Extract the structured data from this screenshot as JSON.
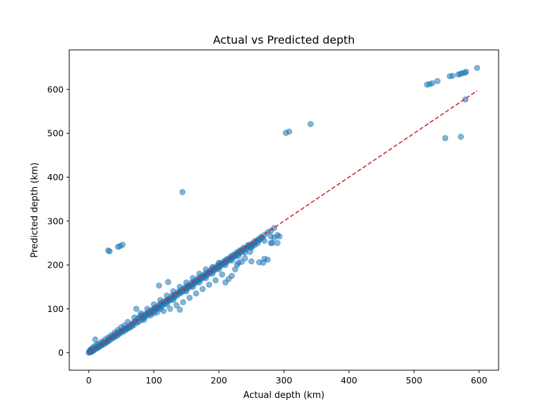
{
  "chart_data": {
    "type": "scatter",
    "title": "Actual vs Predicted depth",
    "xlabel": "Actual depth (km)",
    "ylabel": "Predicted depth (km)",
    "xlim": [
      -30,
      630
    ],
    "ylim": [
      -40,
      690
    ],
    "xticks": [
      0,
      100,
      200,
      300,
      400,
      500,
      600
    ],
    "yticks": [
      0,
      100,
      200,
      300,
      400,
      500,
      600
    ],
    "grid": false,
    "point_color": "#1f77b4",
    "point_alpha": 0.55,
    "reference_line": {
      "from": [
        0,
        0
      ],
      "to": [
        597,
        597
      ],
      "color": "#d62728",
      "style": "dashed"
    },
    "series": [
      {
        "values": [
          [
            0,
            0
          ],
          [
            1,
            2
          ],
          [
            2,
            1
          ],
          [
            3,
            4
          ],
          [
            5,
            3
          ],
          [
            6,
            8
          ],
          [
            8,
            6
          ],
          [
            10,
            10
          ],
          [
            12,
            11
          ],
          [
            15,
            14
          ],
          [
            18,
            19
          ],
          [
            20,
            18
          ],
          [
            22,
            23
          ],
          [
            25,
            24
          ],
          [
            10,
            30
          ],
          [
            28,
            27
          ],
          [
            30,
            31
          ],
          [
            33,
            32
          ],
          [
            35,
            36
          ],
          [
            38,
            37
          ],
          [
            40,
            41
          ],
          [
            42,
            40
          ],
          [
            45,
            46
          ],
          [
            48,
            47
          ],
          [
            50,
            50
          ],
          [
            52,
            51
          ],
          [
            55,
            55
          ],
          [
            58,
            56
          ],
          [
            60,
            58
          ],
          [
            62,
            60
          ],
          [
            65,
            64
          ],
          [
            68,
            67
          ],
          [
            70,
            70
          ],
          [
            72,
            72
          ],
          [
            73,
            100
          ],
          [
            75,
            78
          ],
          [
            78,
            80
          ],
          [
            80,
            85
          ],
          [
            82,
            82
          ],
          [
            85,
            86
          ],
          [
            88,
            89
          ],
          [
            90,
            88
          ],
          [
            92,
            93
          ],
          [
            95,
            96
          ],
          [
            98,
            97
          ],
          [
            100,
            100
          ],
          [
            102,
            103
          ],
          [
            105,
            104
          ],
          [
            108,
            109
          ],
          [
            110,
            108
          ],
          [
            112,
            113
          ],
          [
            115,
            116
          ],
          [
            118,
            117
          ],
          [
            120,
            120
          ],
          [
            122,
            121
          ],
          [
            125,
            124
          ],
          [
            128,
            130
          ],
          [
            130,
            128
          ],
          [
            132,
            133
          ],
          [
            135,
            134
          ],
          [
            138,
            139
          ],
          [
            140,
            138
          ],
          [
            142,
            143
          ],
          [
            145,
            144
          ],
          [
            148,
            149
          ],
          [
            150,
            148
          ],
          [
            152,
            153
          ],
          [
            155,
            154
          ],
          [
            158,
            159
          ],
          [
            160,
            158
          ],
          [
            162,
            163
          ],
          [
            165,
            164
          ],
          [
            168,
            169
          ],
          [
            170,
            168
          ],
          [
            172,
            173
          ],
          [
            175,
            174
          ],
          [
            178,
            179
          ],
          [
            180,
            178
          ],
          [
            182,
            183
          ],
          [
            185,
            184
          ],
          [
            188,
            189
          ],
          [
            190,
            188
          ],
          [
            192,
            193
          ],
          [
            195,
            194
          ],
          [
            198,
            199
          ],
          [
            200,
            198
          ],
          [
            202,
            203
          ],
          [
            205,
            204
          ],
          [
            208,
            209
          ],
          [
            210,
            208
          ],
          [
            212,
            213
          ],
          [
            215,
            214
          ],
          [
            218,
            219
          ],
          [
            220,
            218
          ],
          [
            222,
            223
          ],
          [
            225,
            224
          ],
          [
            228,
            229
          ],
          [
            230,
            228
          ],
          [
            232,
            233
          ],
          [
            235,
            234
          ],
          [
            238,
            239
          ],
          [
            240,
            238
          ],
          [
            245,
            244
          ],
          [
            250,
            248
          ],
          [
            255,
            254
          ],
          [
            260,
            258
          ],
          [
            265,
            264
          ],
          [
            270,
            268
          ],
          [
            275,
            274
          ],
          [
            280,
            278
          ],
          [
            285,
            284
          ],
          [
            290,
            268
          ],
          [
            280,
            250
          ],
          [
            285,
            262
          ],
          [
            275,
            212
          ],
          [
            270,
            214
          ],
          [
            268,
            205
          ],
          [
            262,
            206
          ],
          [
            250,
            208
          ],
          [
            240,
            215
          ],
          [
            235,
            207
          ],
          [
            225,
            190
          ],
          [
            220,
            175
          ],
          [
            215,
            168
          ],
          [
            210,
            160
          ],
          [
            205,
            178
          ],
          [
            195,
            165
          ],
          [
            185,
            155
          ],
          [
            175,
            145
          ],
          [
            165,
            135
          ],
          [
            155,
            125
          ],
          [
            145,
            115
          ],
          [
            140,
            98
          ],
          [
            135,
            108
          ],
          [
            125,
            100
          ],
          [
            115,
            95
          ],
          [
            105,
            92
          ],
          [
            95,
            85
          ],
          [
            85,
            75
          ],
          [
            100,
            90
          ],
          [
            120,
            110
          ],
          [
            130,
            120
          ],
          [
            110,
            100
          ],
          [
            150,
            140
          ],
          [
            160,
            150
          ],
          [
            170,
            160
          ],
          [
            180,
            170
          ],
          [
            190,
            180
          ],
          [
            200,
            190
          ],
          [
            210,
            200
          ],
          [
            220,
            210
          ],
          [
            230,
            220
          ],
          [
            240,
            228
          ],
          [
            250,
            240
          ],
          [
            260,
            250
          ],
          [
            270,
            255
          ],
          [
            282,
            250
          ],
          [
            290,
            250
          ],
          [
            293,
            265
          ],
          [
            280,
            265
          ],
          [
            255,
            245
          ],
          [
            245,
            245
          ],
          [
            248,
            230
          ],
          [
            230,
            205
          ],
          [
            228,
            200
          ],
          [
            200,
            205
          ],
          [
            190,
            195
          ],
          [
            180,
            190
          ],
          [
            170,
            180
          ],
          [
            160,
            170
          ],
          [
            150,
            160
          ],
          [
            140,
            150
          ],
          [
            130,
            140
          ],
          [
            120,
            130
          ],
          [
            110,
            120
          ],
          [
            100,
            110
          ],
          [
            90,
            100
          ],
          [
            80,
            90
          ],
          [
            70,
            80
          ],
          [
            60,
            70
          ],
          [
            55,
            62
          ],
          [
            50,
            58
          ],
          [
            45,
            52
          ],
          [
            40,
            46
          ],
          [
            35,
            40
          ],
          [
            30,
            35
          ],
          [
            25,
            30
          ],
          [
            20,
            25
          ],
          [
            15,
            20
          ],
          [
            12,
            18
          ],
          [
            8,
            14
          ],
          [
            5,
            10
          ],
          [
            3,
            7
          ],
          [
            2,
            5
          ],
          [
            1,
            3
          ],
          [
            4,
            2
          ],
          [
            6,
            4
          ],
          [
            9,
            7
          ],
          [
            13,
            10
          ],
          [
            16,
            13
          ],
          [
            19,
            16
          ],
          [
            23,
            19
          ],
          [
            26,
            22
          ],
          [
            29,
            25
          ],
          [
            32,
            28
          ],
          [
            36,
            32
          ],
          [
            39,
            35
          ],
          [
            43,
            38
          ],
          [
            46,
            42
          ],
          [
            49,
            45
          ],
          [
            53,
            48
          ],
          [
            56,
            51
          ],
          [
            59,
            54
          ],
          [
            63,
            57
          ],
          [
            66,
            60
          ],
          [
            69,
            63
          ],
          [
            74,
            68
          ],
          [
            77,
            71
          ],
          [
            81,
            75
          ],
          [
            84,
            79
          ],
          [
            87,
            82
          ],
          [
            91,
            86
          ],
          [
            94,
            89
          ],
          [
            97,
            92
          ],
          [
            101,
            96
          ],
          [
            104,
            99
          ],
          [
            107,
            102
          ],
          [
            111,
            106
          ],
          [
            114,
            109
          ],
          [
            117,
            112
          ],
          [
            121,
            116
          ],
          [
            124,
            119
          ],
          [
            127,
            122
          ],
          [
            131,
            126
          ],
          [
            134,
            129
          ],
          [
            137,
            132
          ],
          [
            141,
            136
          ],
          [
            144,
            139
          ],
          [
            147,
            142
          ],
          [
            151,
            146
          ],
          [
            154,
            149
          ],
          [
            157,
            152
          ],
          [
            161,
            156
          ],
          [
            164,
            159
          ],
          [
            167,
            162
          ],
          [
            171,
            166
          ],
          [
            174,
            169
          ],
          [
            177,
            172
          ],
          [
            181,
            176
          ],
          [
            184,
            179
          ],
          [
            187,
            182
          ],
          [
            191,
            186
          ],
          [
            194,
            189
          ],
          [
            197,
            192
          ],
          [
            201,
            196
          ],
          [
            204,
            199
          ],
          [
            207,
            202
          ],
          [
            211,
            206
          ],
          [
            214,
            209
          ],
          [
            217,
            212
          ],
          [
            221,
            216
          ],
          [
            224,
            219
          ],
          [
            227,
            222
          ],
          [
            231,
            226
          ],
          [
            234,
            229
          ],
          [
            237,
            232
          ],
          [
            241,
            236
          ],
          [
            244,
            239
          ],
          [
            247,
            242
          ],
          [
            251,
            246
          ],
          [
            254,
            249
          ],
          [
            257,
            252
          ],
          [
            261,
            256
          ],
          [
            264,
            259
          ],
          [
            267,
            262
          ],
          [
            30,
            233
          ],
          [
            32,
            231
          ],
          [
            45,
            241
          ],
          [
            48,
            243
          ],
          [
            52,
            246
          ],
          [
            144,
            366
          ],
          [
            108,
            153
          ],
          [
            122,
            161
          ],
          [
            250,
            240
          ],
          [
            303,
            501
          ],
          [
            308,
            504
          ],
          [
            341,
            521
          ],
          [
            520,
            611
          ],
          [
            524,
            612
          ],
          [
            528,
            614
          ],
          [
            536,
            619
          ],
          [
            555,
            630
          ],
          [
            559,
            631
          ],
          [
            568,
            634
          ],
          [
            571,
            635
          ],
          [
            574,
            637
          ],
          [
            578,
            638
          ],
          [
            580,
            640
          ],
          [
            597,
            649
          ],
          [
            548,
            489
          ],
          [
            572,
            492
          ],
          [
            579,
            577
          ]
        ]
      }
    ]
  }
}
